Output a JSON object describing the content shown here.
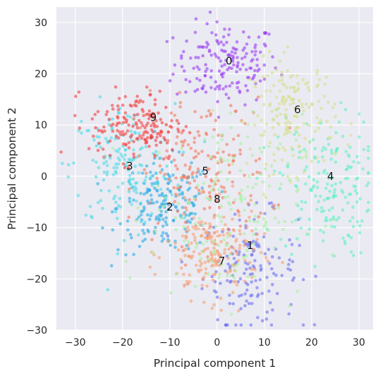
{
  "chart_data": {
    "type": "scatter",
    "xlabel": "Principal component 1",
    "ylabel": "Principal component 2",
    "xlim": [
      -34,
      33
    ],
    "ylim": [
      -30,
      33
    ],
    "xticks": [
      -30,
      -20,
      -10,
      0,
      10,
      20,
      30
    ],
    "yticks": [
      -30,
      -20,
      -10,
      0,
      10,
      20,
      30
    ],
    "xtick_labels": [
      "−30",
      "−20",
      "−10",
      "0",
      "10",
      "20",
      "30"
    ],
    "ytick_labels": [
      "−30",
      "−20",
      "−10",
      "0",
      "10",
      "20",
      "30"
    ],
    "grid": true,
    "background": "#eaeaf2",
    "clusters": [
      {
        "label": "0",
        "label_pos": [
          2.5,
          22.5
        ],
        "color": "#9a3cf5",
        "center": [
          2,
          22
        ],
        "spread": [
          5.5,
          4.0
        ],
        "n": 170
      },
      {
        "label": "1",
        "label_pos": [
          7,
          -13.5
        ],
        "color": "#6a70f0",
        "center": [
          7,
          -18
        ],
        "spread": [
          5.0,
          5.5
        ],
        "n": 150
      },
      {
        "label": "2",
        "label_pos": [
          -10,
          -6
        ],
        "color": "#2aabe5",
        "center": [
          -11,
          -6
        ],
        "spread": [
          5.0,
          4.5
        ],
        "n": 190
      },
      {
        "label": "3",
        "label_pos": [
          -18.5,
          2
        ],
        "color": "#4fdbe6",
        "center": [
          -20,
          2
        ],
        "spread": [
          5.5,
          6.0
        ],
        "n": 170
      },
      {
        "label": "4",
        "label_pos": [
          24,
          0
        ],
        "color": "#62f0c6",
        "center": [
          23,
          -2
        ],
        "spread": [
          5.0,
          7.0
        ],
        "n": 180
      },
      {
        "label": "5",
        "label_pos": [
          -2.5,
          1
        ],
        "color": "#f27a5c",
        "center": [
          -3,
          1
        ],
        "spread": [
          7.0,
          7.0
        ],
        "n": 180
      },
      {
        "label": "6",
        "label_pos": [
          17,
          13
        ],
        "color": "#d5e08a",
        "center": [
          16,
          12
        ],
        "spread": [
          4.5,
          5.5
        ],
        "n": 170
      },
      {
        "label": "7",
        "label_pos": [
          1,
          -16.5
        ],
        "color": "#f7a070",
        "center": [
          -1,
          -15
        ],
        "spread": [
          5.0,
          4.5
        ],
        "n": 190
      },
      {
        "label": "8",
        "label_pos": [
          0,
          -4.5
        ],
        "color": "#a8f0a0",
        "center": [
          2,
          -6
        ],
        "spread": [
          8.0,
          9.0
        ],
        "n": 170
      },
      {
        "label": "9",
        "label_pos": [
          -13.5,
          11.5
        ],
        "color": "#f24040",
        "center": [
          -17,
          10
        ],
        "spread": [
          5.0,
          3.5
        ],
        "n": 170
      }
    ]
  }
}
